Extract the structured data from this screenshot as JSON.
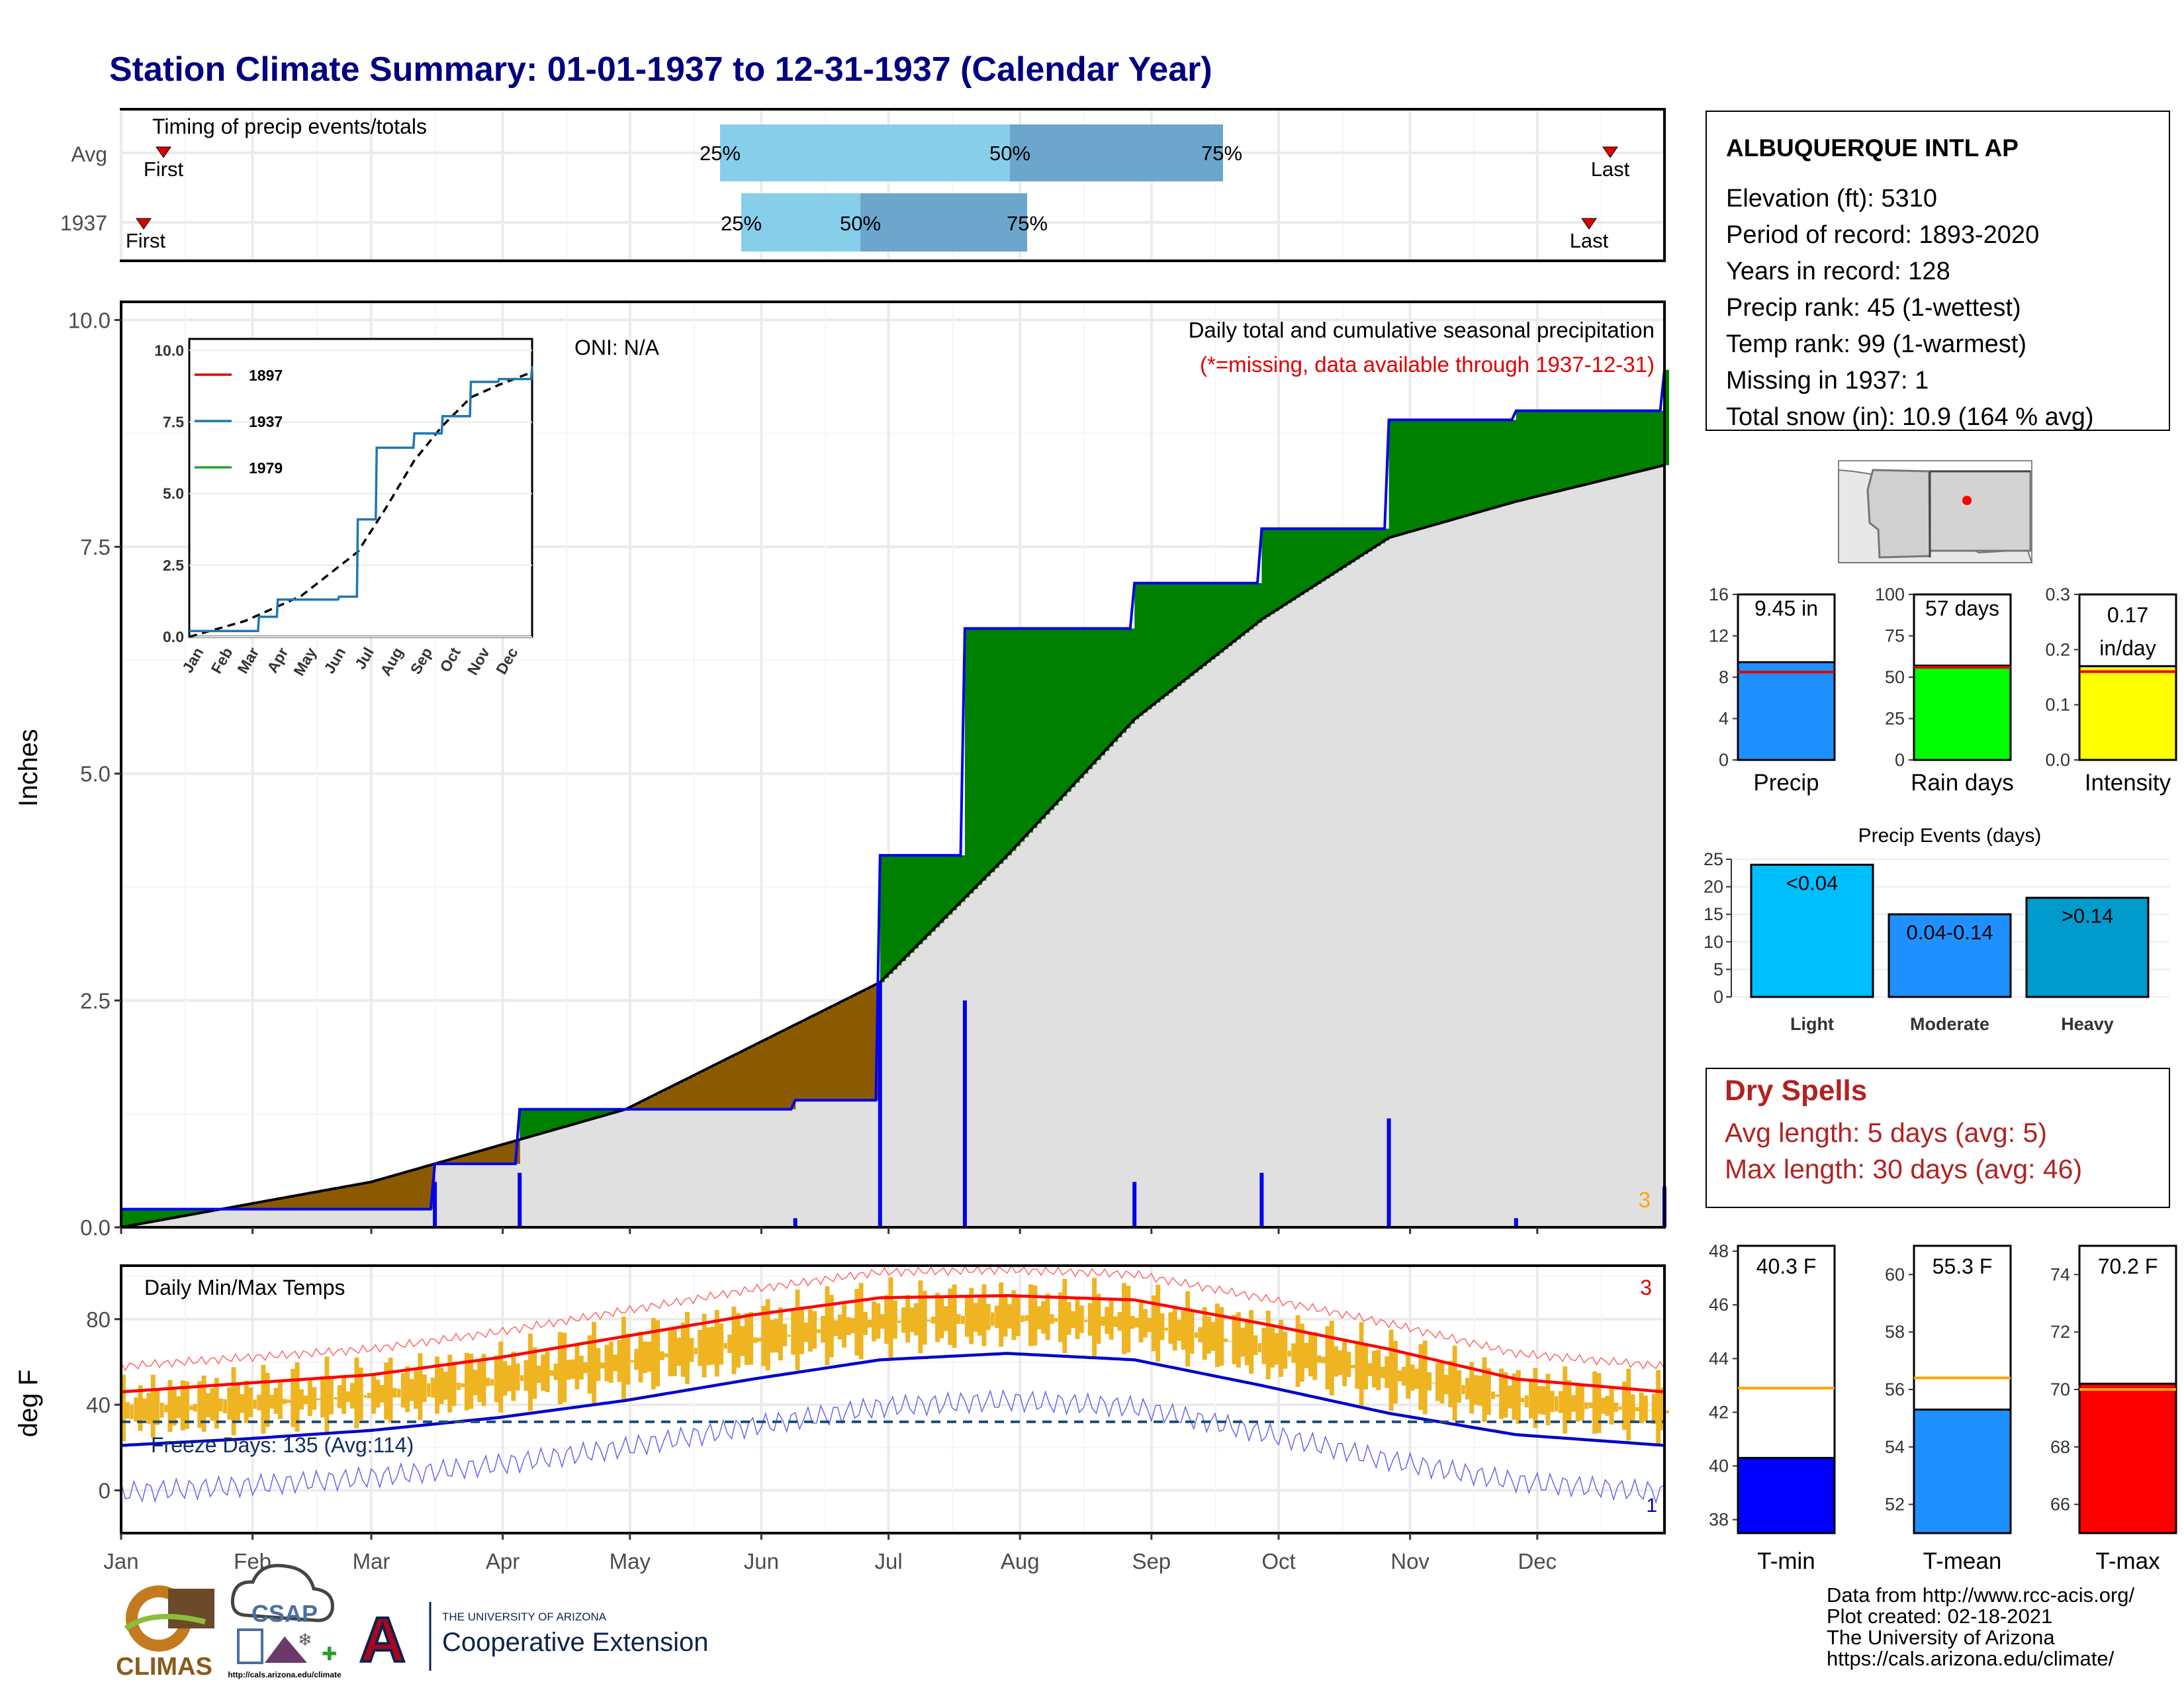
{
  "title": "Station Climate Summary: 01-01-1937 to 12-31-1937 (Calendar Year)",
  "colors": {
    "title": "#000080",
    "precip_cum": "#0000ee",
    "above_avg": "#008000",
    "below_avg": "#8b5a00",
    "avg_fill": "#e0e0e0",
    "tmax": "#ff0000",
    "tmin": "#0000cc",
    "temp_bars": "#eeb422",
    "light": "#00bfff",
    "moderate": "#1e90ff",
    "heavy": "#009acd"
  },
  "timing": {
    "label": "Timing of precip events/totals",
    "rows": [
      "Avg",
      "1937"
    ],
    "first_label": "First",
    "last_label": "Last",
    "p25": "25%",
    "p50": "50%",
    "p75": "75%"
  },
  "station": {
    "name": "ALBUQUERQUE INTL AP",
    "lines": [
      "Elevation (ft): 5310",
      "Period of record: 1893-2020",
      "Years in record: 128",
      "Precip rank: 45 (1-wettest)",
      "Temp rank: 99 (1-warmest)",
      "Missing in 1937: 1",
      "Total snow (in): 10.9 (164 % avg)"
    ]
  },
  "precip_panel": {
    "ylabel": "Inches",
    "yticks": [
      "0.0",
      "2.5",
      "5.0",
      "7.5",
      "10.0"
    ],
    "caption1": "Daily total and cumulative seasonal precipitation",
    "caption2": "(*=missing, data available through 1937-12-31)",
    "oni": "ONI: N/A",
    "count_label": "3"
  },
  "inset": {
    "yticks": [
      "0.0",
      "2.5",
      "5.0",
      "7.5",
      "10.0"
    ],
    "months": [
      "Jan",
      "Feb",
      "Mar",
      "Apr",
      "May",
      "Jun",
      "Jul",
      "Aug",
      "Sep",
      "Oct",
      "Nov",
      "Dec"
    ],
    "legend": [
      "1897",
      "1937",
      "1979"
    ]
  },
  "temp_panel": {
    "title": "Daily Min/Max Temps",
    "ylabel": "deg F",
    "yticks": [
      "0",
      "40",
      "80"
    ],
    "freeze": "Freeze Days: 135 (Avg:114)",
    "count_max": "3",
    "count_min": "1"
  },
  "months": [
    "Jan",
    "Feb",
    "Mar",
    "Apr",
    "May",
    "Jun",
    "Jul",
    "Aug",
    "Sep",
    "Oct",
    "Nov",
    "Dec"
  ],
  "summary_bars": [
    {
      "label": "Precip",
      "value_label": "9.45 in",
      "yticks": [
        "0",
        "4",
        "8",
        "12",
        "16"
      ]
    },
    {
      "label": "Rain days",
      "value_label": "57 days",
      "yticks": [
        "0",
        "25",
        "50",
        "75",
        "100"
      ]
    },
    {
      "label": "Intensity",
      "value_label": "0.17",
      "value_label2": "in/day",
      "yticks": [
        "0.0",
        "0.1",
        "0.2",
        "0.3"
      ]
    }
  ],
  "events": {
    "title": "Precip Events (days)",
    "yticks": [
      "0",
      "5",
      "10",
      "15",
      "20",
      "25"
    ],
    "bars": [
      {
        "cat": "Light",
        "label": "<0.04"
      },
      {
        "cat": "Moderate",
        "label": "0.04-0.14"
      },
      {
        "cat": "Heavy",
        "label": ">0.14"
      }
    ]
  },
  "dry": {
    "title": "Dry Spells",
    "line1": "Avg length: 5 days (avg: 5)",
    "line2": "Max length: 30 days (avg: 46)"
  },
  "temp_summary": [
    {
      "label": "T-min",
      "value_label": "40.3 F",
      "yticks": [
        "38",
        "40",
        "42",
        "44",
        "46",
        "48"
      ]
    },
    {
      "label": "T-mean",
      "value_label": "55.3 F",
      "yticks": [
        "52",
        "54",
        "56",
        "58",
        "60"
      ]
    },
    {
      "label": "T-max",
      "value_label": "70.2 F",
      "yticks": [
        "66",
        "68",
        "70",
        "72",
        "74"
      ]
    }
  ],
  "credits": [
    "Data from http://www.rcc-acis.org/",
    "Plot created: 02-18-2021",
    "The University of Arizona",
    "https://cals.arizona.edu/climate/"
  ],
  "logos": {
    "climas": "CLIMAS",
    "csap": "CSAP",
    "csap_url": "http://cals.arizona.edu/climate",
    "ua_small": "THE UNIVERSITY OF ARIZONA",
    "ua_big": "Cooperative Extension",
    "ua_letter": "A"
  },
  "chart_data": [
    {
      "type": "area",
      "title": "Daily total and cumulative seasonal precipitation",
      "ylabel": "Inches",
      "ylim": [
        0,
        10.2
      ],
      "series": [
        {
          "name": "1937",
          "x_day": [
            1,
            20,
            75,
            95,
            160,
            180,
            181,
            200,
            240,
            270,
            300,
            330,
            365
          ],
          "values": [
            0.2,
            0.2,
            0.7,
            1.3,
            1.4,
            4.1,
            4.1,
            6.6,
            7.1,
            7.7,
            8.9,
            9.0,
            9.45
          ]
        },
        {
          "x_day": [
            1,
            60,
            120,
            150,
            180,
            210,
            240,
            270,
            300,
            330,
            365
          ],
          "values": [
            0.0,
            0.5,
            1.3,
            2.0,
            2.7,
            4.1,
            5.6,
            6.7,
            7.6,
            8.0,
            8.4
          ]
        }
      ]
    },
    {
      "type": "line",
      "title": "Daily Min/Max Temps",
      "ylabel": "deg F",
      "ylim": [
        -20,
        105
      ],
      "series": [
        {
          "x_day": [
            1,
            30,
            60,
            90,
            120,
            150,
            180,
            210,
            240,
            270,
            300,
            330,
            365
          ],
          "values": [
            46,
            50,
            54,
            62,
            72,
            82,
            90,
            91,
            89,
            78,
            66,
            52,
            46
          ]
        },
        {
          "x_day": [
            1,
            30,
            60,
            90,
            120,
            150,
            180,
            210,
            240,
            270,
            300,
            330,
            365
          ],
          "values": [
            21,
            24,
            28,
            34,
            42,
            52,
            61,
            64,
            61,
            49,
            36,
            26,
            21
          ]
        }
      ]
    },
    {
      "type": "bar",
      "title": "Precip Events (days)",
      "categories": [
        "Light",
        "Moderate",
        "Heavy"
      ],
      "values": [
        24,
        15,
        18
      ]
    },
    {
      "type": "bar",
      "categories": [
        "Precip",
        "Rain days",
        "Intensity"
      ],
      "values": [
        9.45,
        57,
        0.17
      ]
    },
    {
      "type": "bar",
      "categories": [
        "T-min",
        "T-mean",
        "T-max"
      ],
      "values": [
        40.3,
        55.3,
        70.2
      ]
    }
  ]
}
